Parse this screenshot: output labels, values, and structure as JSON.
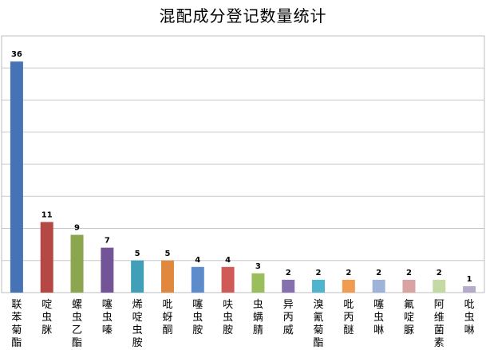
{
  "chart_data": {
    "type": "bar",
    "title": "混配成分登记数量统计",
    "categories": [
      "联苯菊酯",
      "啶虫脒",
      "螺虫乙酯",
      "噻虫嗪",
      "烯啶虫胺",
      "吡蚜酮",
      "噻虫胺",
      "呋虫胺",
      "虫螨腈",
      "异丙威",
      "溴氰菊酯",
      "吡丙醚",
      "噻虫啉",
      "氟啶脲",
      "阿维菌素",
      "吡虫啉"
    ],
    "values": [
      36,
      11,
      9,
      7,
      5,
      5,
      4,
      4,
      3,
      2,
      2,
      2,
      2,
      2,
      2,
      1
    ],
    "colors": [
      "#4573b5",
      "#b54744",
      "#8ba64e",
      "#735597",
      "#41a0b7",
      "#e0883e",
      "#5e8bcc",
      "#cf5a57",
      "#9bbe5c",
      "#8670ad",
      "#4fb5cf",
      "#f29c52",
      "#9fb3d8",
      "#d8a3a2",
      "#c5d9a2",
      "#b6abcb"
    ],
    "ylim": [
      0,
      40
    ],
    "grid": true,
    "data_labels": true
  }
}
